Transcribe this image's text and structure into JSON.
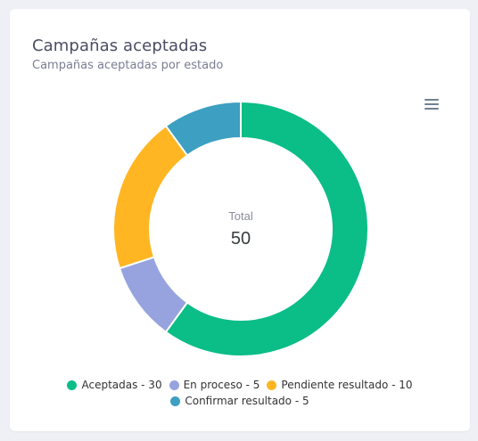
{
  "card": {
    "title": "Campañas aceptadas",
    "subtitle": "Campañas aceptadas por estado"
  },
  "toolbar": {
    "menu_icon": "hamburger-menu-icon"
  },
  "chart_data": {
    "type": "pie",
    "variant": "donut",
    "categories": [
      "Aceptadas",
      "En proceso",
      "Pendiente resultado",
      "Confirmar resultado"
    ],
    "values": [
      30,
      5,
      10,
      5
    ],
    "colors": [
      "#0bbd87",
      "#96a3de",
      "#ffb622",
      "#3d9fc2"
    ],
    "legend_labels": [
      "Aceptadas - 30",
      "En proceso - 5",
      "Pendiente resultado - 10",
      "Confirmar resultado - 5"
    ],
    "center_label": "Total",
    "center_value": "50",
    "legend_position": "bottom"
  }
}
